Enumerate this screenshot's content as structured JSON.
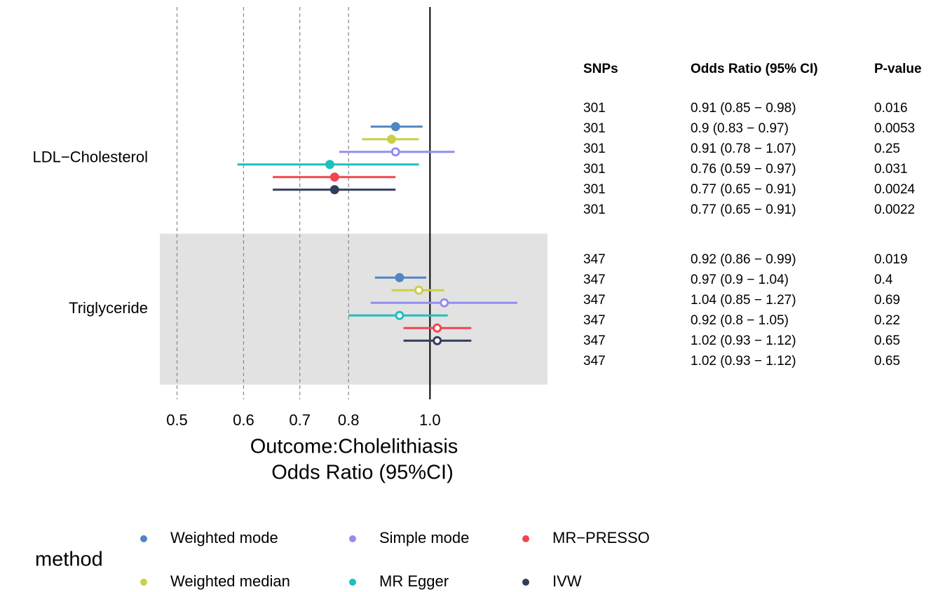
{
  "chart_data": {
    "type": "forest",
    "categories": [
      "LDL−Cholesterol",
      "Triglyceride"
    ],
    "series": [
      {
        "name": "Weighted mode",
        "color": "#4f87c1",
        "values": [
          0.91,
          0.92
        ],
        "lower": [
          0.85,
          0.86
        ],
        "upper": [
          0.98,
          0.99
        ],
        "filled": [
          true,
          true
        ]
      },
      {
        "name": "Weighted median",
        "color": "#c9cf47",
        "values": [
          0.9,
          0.97
        ],
        "lower": [
          0.83,
          0.9
        ],
        "upper": [
          0.97,
          1.04
        ],
        "filled": [
          true,
          false
        ]
      },
      {
        "name": "Simple mode",
        "color": "#938ef0",
        "values": [
          0.91,
          1.04
        ],
        "lower": [
          0.78,
          0.85
        ],
        "upper": [
          1.07,
          1.27
        ],
        "filled": [
          false,
          false
        ]
      },
      {
        "name": "MR Egger",
        "color": "#1ebfbe",
        "values": [
          0.76,
          0.92
        ],
        "lower": [
          0.59,
          0.8
        ],
        "upper": [
          0.97,
          1.05
        ],
        "filled": [
          true,
          false
        ]
      },
      {
        "name": "MR−PRESSO",
        "color": "#f1464f",
        "values": [
          0.77,
          1.02
        ],
        "lower": [
          0.65,
          0.93
        ],
        "upper": [
          0.91,
          1.12
        ],
        "filled": [
          true,
          false
        ]
      },
      {
        "name": "IVW",
        "color": "#323d5a",
        "values": [
          0.77,
          1.02
        ],
        "lower": [
          0.65,
          0.93
        ],
        "upper": [
          0.91,
          1.12
        ],
        "filled": [
          true,
          false
        ]
      }
    ],
    "xlim": [
      0.477,
      1.38
    ],
    "xticks": [
      0.5,
      0.6,
      0.7,
      0.8,
      {
        "value": 1,
        "label": "1.0"
      }
    ],
    "log_scale": true,
    "reference_line": 1,
    "grid": true,
    "xlabel": [
      "Outcome:Cholelithiasis",
      "Odds Ratio (95%CI)"
    ],
    "legend_title": "method",
    "legend_position": "bottom",
    "table": {
      "columns": [
        "SNPs",
        "Odds Ratio (95% CI)",
        "P-value"
      ],
      "rows": [
        [
          [
            301,
            "0.91 (0.85 − 0.98)",
            0.016
          ],
          [
            301,
            "0.9 (0.83 − 0.97)",
            0.0053
          ],
          [
            301,
            "0.91 (0.78 − 1.07)",
            0.25
          ],
          [
            301,
            "0.76 (0.59 − 0.97)",
            0.031
          ],
          [
            301,
            "0.77 (0.65 − 0.91)",
            0.0024
          ],
          [
            301,
            "0.77 (0.65 − 0.91)",
            0.0022
          ]
        ],
        [
          [
            347,
            "0.92 (0.86 − 0.99)",
            0.019
          ],
          [
            347,
            "0.97 (0.9 − 1.04)",
            0.4
          ],
          [
            347,
            "1.04 (0.85 − 1.27)",
            0.69
          ],
          [
            347,
            "0.92 (0.8 − 1.05)",
            0.22
          ],
          [
            347,
            "1.02 (0.93 − 1.12)",
            0.65
          ],
          [
            347,
            "1.02 (0.93 − 1.12)",
            0.65
          ]
        ]
      ]
    }
  }
}
